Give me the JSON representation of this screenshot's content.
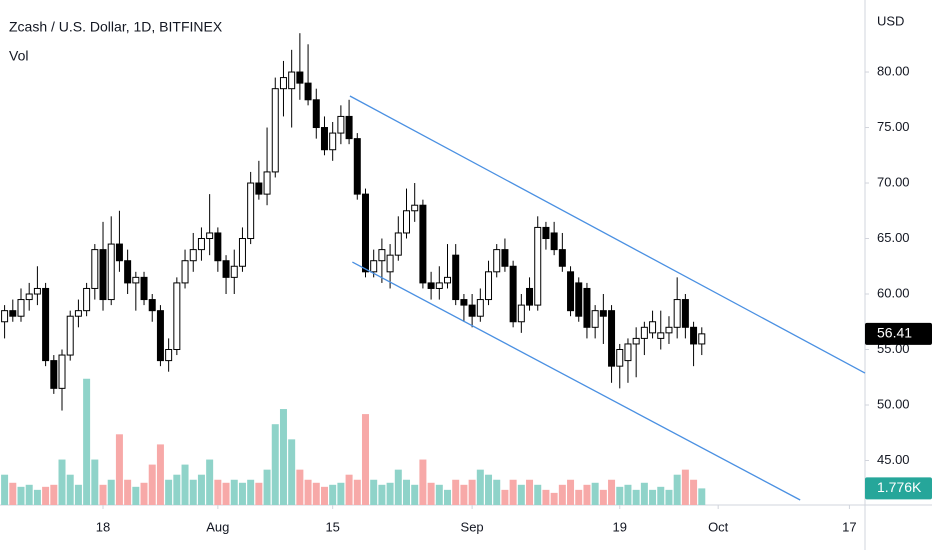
{
  "chart_data": {
    "type": "candlestick",
    "title": "Zcash / U.S. Dollar, 1D, BITFINEX",
    "subtitle": "Vol",
    "currency": "USD",
    "x": [
      6,
      7,
      8,
      9,
      10,
      11,
      12,
      13,
      14,
      15,
      16,
      17,
      18,
      19,
      20,
      21,
      22,
      23,
      24,
      25,
      26,
      27,
      28,
      29,
      30,
      31,
      32,
      33,
      34,
      35,
      36,
      37,
      38,
      39,
      40,
      41,
      42,
      43,
      44,
      45,
      46,
      47,
      48,
      49,
      50,
      51,
      52,
      53,
      54,
      55,
      56,
      57,
      58,
      59,
      60,
      61,
      62,
      63,
      64,
      65,
      66,
      67,
      68,
      69,
      70,
      71,
      72,
      73,
      74,
      75,
      76,
      77,
      78,
      79,
      80,
      81,
      82,
      83,
      84,
      85,
      86,
      87,
      88,
      89,
      90,
      91
    ],
    "open": [
      57.5,
      58.5,
      58,
      59.5,
      60,
      60.5,
      54,
      51.5,
      54.5,
      58,
      58.5,
      60.5,
      64,
      59.5,
      64.5,
      63,
      61,
      61.5,
      59.5,
      58.5,
      54,
      55,
      61,
      63,
      64,
      65,
      65.5,
      63,
      61.5,
      62.5,
      65,
      70,
      69,
      71,
      78.5,
      78.5,
      80,
      79,
      77.5,
      75,
      73,
      74.5,
      76,
      74,
      69,
      62,
      63,
      62,
      63.5,
      65.5,
      67.5,
      68,
      61,
      60.5,
      61,
      63.5,
      59.5,
      59,
      58,
      59.5,
      62,
      64,
      62.5,
      57.5,
      60.5,
      59,
      66,
      65.5,
      64,
      62,
      61,
      60.5,
      57,
      58.5,
      58.5,
      53.5,
      54,
      55.5,
      56,
      56.5,
      56,
      56.5,
      57,
      59.5,
      57,
      55.5
    ],
    "high": [
      59,
      59.5,
      60.5,
      61,
      62.5,
      61,
      54.5,
      55,
      58.5,
      59.5,
      61,
      64.5,
      66.5,
      67,
      67.5,
      64,
      62,
      62,
      60,
      59,
      56,
      61.5,
      64,
      65.5,
      66,
      69,
      66,
      63.5,
      64,
      66,
      71,
      72,
      75,
      79.5,
      81,
      82,
      83.5,
      82.5,
      78.5,
      76,
      75.5,
      77,
      77.5,
      74.5,
      69.5,
      64,
      65,
      64.5,
      67,
      69.5,
      70,
      68.5,
      62,
      62.5,
      64.5,
      64.5,
      60,
      60,
      60.5,
      63,
      64.5,
      65,
      63,
      60,
      61.5,
      67,
      66.5,
      66.5,
      65.5,
      62.5,
      61.5,
      61,
      59,
      60,
      59,
      55.5,
      56,
      57,
      57.5,
      58.5,
      58.5,
      58,
      61.5,
      60,
      57.5,
      57
    ],
    "low": [
      56,
      57.5,
      57.5,
      58.5,
      59,
      53.5,
      51,
      49.5,
      54,
      57,
      58,
      59.5,
      58.5,
      59,
      62,
      60,
      58.5,
      59,
      57.5,
      53.5,
      53,
      54.5,
      60.5,
      62,
      63,
      63.5,
      62,
      60,
      60,
      62,
      64.5,
      68.5,
      68,
      70.5,
      76,
      75,
      77.5,
      77,
      74,
      72.5,
      72,
      73.5,
      73.5,
      68.5,
      61.5,
      61.5,
      61,
      60.5,
      63,
      65,
      66.5,
      60.5,
      59.5,
      59.5,
      60.5,
      59,
      57.5,
      57,
      57.5,
      59,
      61.5,
      62,
      57,
      56.5,
      58.5,
      58.5,
      64,
      63.5,
      62,
      58,
      57.5,
      56,
      56,
      55.5,
      52,
      51.5,
      52,
      52.5,
      54.5,
      56,
      55,
      55.5,
      56,
      56,
      53.5,
      54.5
    ],
    "close": [
      58.5,
      58,
      59.5,
      60,
      60.5,
      54,
      51.5,
      54.5,
      58,
      58.5,
      60.5,
      64,
      59.5,
      64.5,
      63,
      61,
      61.5,
      59.5,
      58.5,
      54,
      55,
      61,
      63,
      64,
      65,
      65.5,
      63,
      61.5,
      62.5,
      65,
      70,
      69,
      71,
      78.5,
      79.5,
      80,
      79,
      77.5,
      75,
      73,
      74.5,
      76,
      74,
      69,
      62,
      63,
      64,
      63.5,
      65.5,
      67.5,
      68,
      61,
      60.5,
      61,
      61.5,
      59.5,
      59,
      58,
      59.5,
      62,
      64,
      62.5,
      57.5,
      59,
      59,
      66,
      65,
      64,
      62.5,
      58.5,
      58,
      57,
      58.5,
      58,
      53.5,
      55,
      55.5,
      56,
      57,
      57.5,
      56.5,
      57,
      59.5,
      57,
      55.5,
      56.41
    ],
    "volume": [
      3240,
      2376,
      1944,
      2160,
      1620,
      1944,
      2160,
      4860,
      3240,
      2160,
      13500,
      4860,
      2160,
      2700,
      7560,
      2700,
      1944,
      2376,
      4320,
      6480,
      2700,
      3240,
      4320,
      2700,
      3240,
      4860,
      2700,
      2376,
      2700,
      2376,
      2700,
      2376,
      3780,
      8640,
      10260,
      7020,
      3780,
      2700,
      2376,
      1944,
      2160,
      2376,
      3240,
      2700,
      9720,
      2700,
      2160,
      2376,
      3780,
      2700,
      2160,
      4860,
      2376,
      2160,
      1620,
      2700,
      2160,
      2700,
      3780,
      3240,
      2700,
      1620,
      2700,
      2160,
      2700,
      2160,
      1620,
      1296,
      2160,
      2700,
      1620,
      2160,
      2376,
      1620,
      2700,
      1944,
      2160,
      1620,
      2376,
      1620,
      1944,
      1620,
      3240,
      3780,
      2700,
      1776
    ],
    "volume_last_label": "1.776K",
    "volume_ylim": [
      0,
      54000
    ],
    "up_color": "#ffffff",
    "down_color": "#000000",
    "up_volume_color": "#8fd3c9",
    "down_volume_color": "#f7a9a8",
    "last_price_color": "#000000",
    "last_volume_color": "#26a69a",
    "xlim": [
      5.44,
      110.9
    ],
    "ylim": [
      40.99,
      86.49
    ],
    "xticks": [
      {
        "value": 18,
        "label": "18"
      },
      {
        "value": 32,
        "label": "Aug"
      },
      {
        "value": 46,
        "label": "15"
      },
      {
        "value": 63,
        "label": "Sep"
      },
      {
        "value": 81,
        "label": "19"
      },
      {
        "value": 93,
        "label": "Oct"
      },
      {
        "value": 109,
        "label": "17"
      }
    ],
    "yticks": [
      {
        "value": 45,
        "label": "45.00"
      },
      {
        "value": 50,
        "label": "50.00"
      },
      {
        "value": 55,
        "label": "55.00"
      },
      {
        "value": 60,
        "label": "60.00"
      },
      {
        "value": 65,
        "label": "65.00"
      },
      {
        "value": 70,
        "label": "70.00"
      },
      {
        "value": 75,
        "label": "75.00"
      },
      {
        "value": 80,
        "label": "80.00"
      }
    ],
    "channels": [
      {
        "color": "#4a90e2",
        "points": [
          [
            48.1,
            77.84
          ],
          [
            110.9,
            52.88
          ]
        ]
      },
      {
        "color": "#4a90e2",
        "points": [
          [
            48.4,
            62.88
          ],
          [
            103,
            41.44
          ]
        ]
      }
    ]
  }
}
